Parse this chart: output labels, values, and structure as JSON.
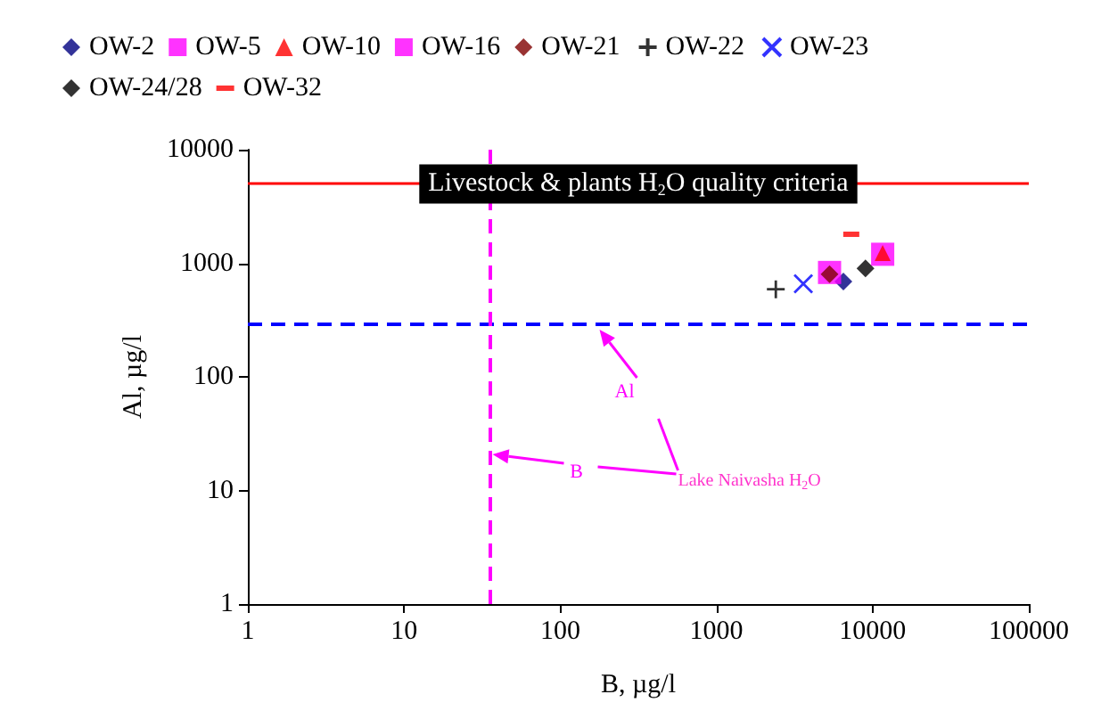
{
  "chart_data": {
    "type": "scatter",
    "xlabel": "B, µg/l",
    "ylabel": "Al, µg/l",
    "log": "xy",
    "xlim": [
      1,
      100000
    ],
    "ylim": [
      1,
      10000
    ],
    "xticks": [
      1,
      10,
      100,
      1000,
      10000,
      100000
    ],
    "yticks": [
      1,
      10,
      100,
      1000,
      10000
    ],
    "grid": false,
    "legend": "top",
    "series": [
      {
        "name": "OW-2",
        "color": "#000080",
        "marker": "diamond",
        "x": [
          6500
        ],
        "values": [
          690
        ]
      },
      {
        "name": "OW-5",
        "color": "#ff00ff",
        "marker": "square",
        "x": [
          11600
        ],
        "values": [
          1200
        ]
      },
      {
        "name": "OW-10",
        "color": "#ff0000",
        "marker": "triangle",
        "x": [
          11600
        ],
        "values": [
          1230
        ]
      },
      {
        "name": "OW-16",
        "color": "#ff00ff",
        "marker": "square",
        "x": [
          5300
        ],
        "values": [
          830
        ]
      },
      {
        "name": "OW-21",
        "color": "#800000",
        "marker": "diamond",
        "x": [
          5300
        ],
        "values": [
          800
        ]
      },
      {
        "name": "OW-22",
        "color": "#000000",
        "marker": "cross",
        "x": [
          2400
        ],
        "values": [
          590
        ]
      },
      {
        "name": "OW-23",
        "color": "#0000ff",
        "marker": "x",
        "x": [
          3600
        ],
        "values": [
          660
        ]
      },
      {
        "name": "OW-24/28",
        "color": "#000000",
        "marker": "diamond",
        "x": [
          9000
        ],
        "values": [
          900
        ]
      },
      {
        "name": "OW-32",
        "color": "#ff0000",
        "x": [
          7300
        ],
        "values": [
          1800
        ]
      }
    ],
    "ref_lines": [
      {
        "axis": "y",
        "value": 5000,
        "label": "Livestock & plants H$_{2}$O quality criteria",
        "color": "#ff0000",
        "line_style": "solid"
      },
      {
        "axis": "y",
        "value": 290,
        "label": "Al",
        "color": "#0000ff",
        "line_style": "dashed"
      },
      {
        "axis": "x",
        "value": 35,
        "label": "B",
        "color": "#ff00ff",
        "line_style": "dashed"
      }
    ],
    "annotations": [
      "Lake Naivasha H$_{2}$O"
    ]
  }
}
